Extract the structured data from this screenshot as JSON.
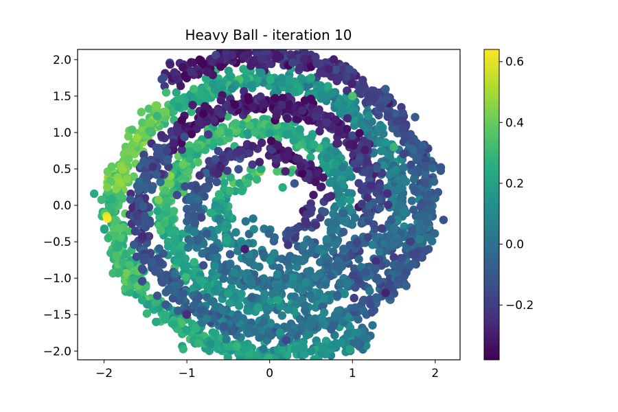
{
  "chart_data": {
    "type": "scatter",
    "title": "Heavy Ball - iteration 10",
    "xlabel": "",
    "ylabel": "",
    "xlim": [
      -2.32,
      2.3
    ],
    "ylim": [
      -2.12,
      2.14
    ],
    "xticks": [
      -2,
      -1,
      0,
      1,
      2
    ],
    "xtick_labels": [
      "−2",
      "−1",
      "0",
      "1",
      "2"
    ],
    "yticks": [
      -2.0,
      -1.5,
      -1.0,
      -0.5,
      0.0,
      0.5,
      1.0,
      1.5,
      2.0
    ],
    "ytick_labels": [
      "−2.0",
      "−1.5",
      "−1.0",
      "−0.5",
      "0.0",
      "0.5",
      "1.0",
      "1.5",
      "2.0"
    ],
    "grid": false,
    "colormap": "viridis",
    "colorbar": {
      "vmin": -0.38,
      "vmax": 0.64,
      "ticks": [
        -0.2,
        0.0,
        0.2,
        0.4,
        0.6
      ],
      "tick_labels": [
        "−0.2",
        "0.0",
        "0.2",
        "0.4",
        "0.6"
      ]
    },
    "structure": "two-arm spiral point cloud (double spiral), approx 3 turns, outer radius approx 2",
    "points_sample": [
      {
        "x": -1.97,
        "y": -0.15,
        "c": 0.58
      },
      {
        "x": -1.96,
        "y": -0.18,
        "c": 0.64
      },
      {
        "x": -2.12,
        "y": 0.16,
        "c": 0.25
      },
      {
        "x": -1.55,
        "y": 1.28,
        "c": 0.4
      },
      {
        "x": -1.25,
        "y": 1.55,
        "c": 0.32
      },
      {
        "x": -0.42,
        "y": 1.38,
        "c": -0.36
      },
      {
        "x": -0.1,
        "y": 1.82,
        "c": 0.12
      },
      {
        "x": 0.5,
        "y": 1.75,
        "c": 0.22
      },
      {
        "x": 1.0,
        "y": 1.5,
        "c": 0.35
      },
      {
        "x": 1.5,
        "y": 0.8,
        "c": 0.3
      },
      {
        "x": 2.0,
        "y": 0.1,
        "c": -0.05
      },
      {
        "x": 2.1,
        "y": -0.2,
        "c": -0.12
      },
      {
        "x": 1.7,
        "y": -0.5,
        "c": -0.18
      },
      {
        "x": 1.4,
        "y": -1.2,
        "c": -0.28
      },
      {
        "x": 0.2,
        "y": -1.85,
        "c": -0.15
      },
      {
        "x": -1.0,
        "y": -1.5,
        "c": -0.25
      },
      {
        "x": -1.5,
        "y": -0.3,
        "c": -0.12
      },
      {
        "x": -0.3,
        "y": -0.6,
        "c": -0.3
      },
      {
        "x": 0.3,
        "y": 0.3,
        "c": -0.1
      },
      {
        "x": 0.1,
        "y": -1.3,
        "c": 0.22
      }
    ]
  }
}
